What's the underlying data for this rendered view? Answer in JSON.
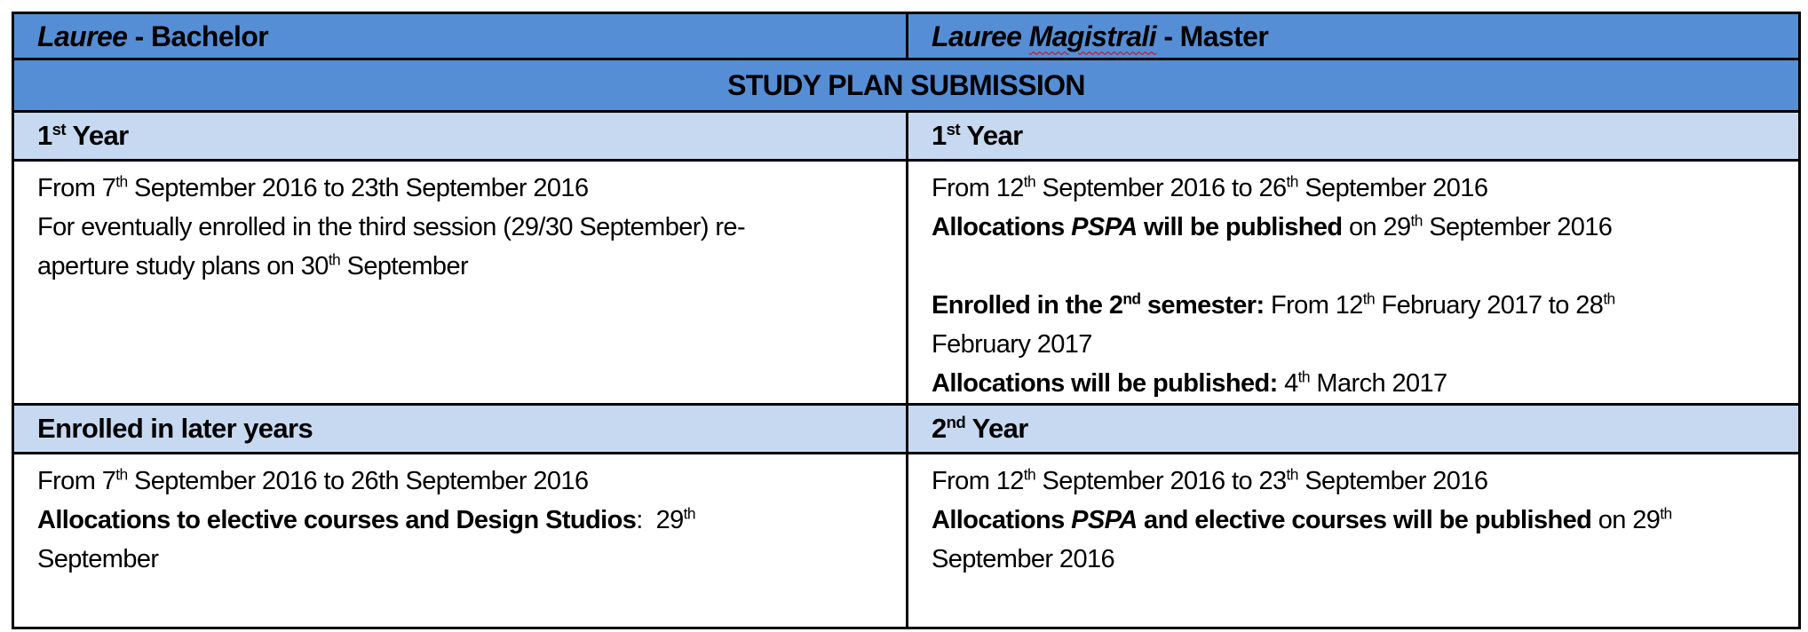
{
  "header": {
    "bachelor": {
      "italic": "Lauree",
      "rest": " - Bachelor"
    },
    "master": {
      "italic": "Lauree Magistrali",
      "italic_a": "Lauree ",
      "italic_b": "Magistrali",
      "rest": " - Master"
    },
    "section_title": "STUDY PLAN SUBMISSION"
  },
  "rows": {
    "bachelor_first_year": {
      "title": "1",
      "title_sup": "st",
      "title_rest": " Year",
      "lines": [
        {
          "a": "From 7",
          "a_sup": "th",
          "b": " September 2016 to 23th September 2016"
        },
        {
          "text": "For eventually enrolled in the third session (29/30 September) re-"
        },
        {
          "a": "aperture study plans on 30",
          "a_sup": "th",
          "b": " September"
        }
      ]
    },
    "master_first_year": {
      "title": "1",
      "title_sup": "st",
      "title_rest": " Year",
      "line1": {
        "a": "From 12",
        "a_sup": "th",
        "b": " September 2016 to 26",
        "b_sup": "th",
        "c": " September 2016"
      },
      "line2": {
        "bold1": "Allocations ",
        "bold_italic": "PSPA",
        "bold2": " will be published",
        "rest": " on 29",
        "rest_sup": "th",
        "end": " September 2016"
      },
      "line3": {
        "bold": "Enrolled in the 2",
        "bold_sup": "nd",
        "bold_end": " semester:",
        "rest": " From 12",
        "rest_sup": "th",
        "mid": " February 2017 to 28",
        "mid_sup": "th"
      },
      "line4": "February 2017",
      "line5": {
        "bold": "Allocations will be published:",
        "rest": " 4",
        "rest_sup": "th",
        "end": " March 2017"
      }
    },
    "bachelor_later_years": {
      "title": "Enrolled in later years",
      "line1": {
        "a": "From 7",
        "a_sup": "th",
        "b": " September 2016 to 26th September 2016"
      },
      "line2": {
        "bold": "Allocations to elective courses and Design Studios",
        "rest": ":  29",
        "rest_sup": "th"
      },
      "line3": "September"
    },
    "master_second_year": {
      "title": "2",
      "title_sup": "nd",
      "title_rest": " Year",
      "line1": {
        "a": "From 12",
        "a_sup": "th",
        "b": " September 2016 to 23",
        "b_sup": "th",
        "c": " September 2016"
      },
      "line2": {
        "bold1": "Allocations ",
        "bold_italic": "PSPA",
        "bold2": " and elective courses will be published",
        "rest": " on 29",
        "rest_sup": "th"
      },
      "line3": "September 2016"
    }
  },
  "colors": {
    "header_bg": "#558ed5",
    "subheader_bg": "#c6d9f1",
    "border": "#000000"
  }
}
